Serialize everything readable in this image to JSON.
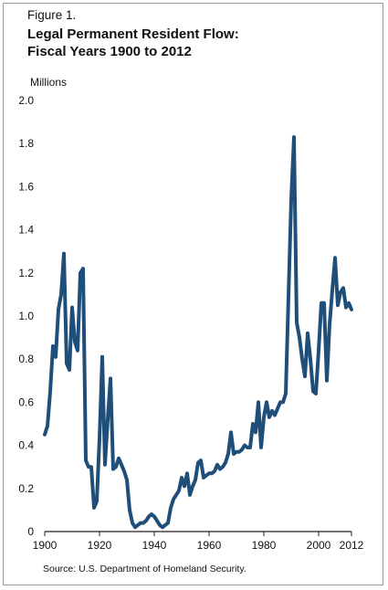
{
  "figure_label": "Figure 1.",
  "title_line1": "Legal Permanent Resident Flow:",
  "title_line2": "Fiscal Years 1900 to 2012",
  "source": "Source: U.S. Department of Homeland Security.",
  "colors": {
    "line": "#1f4e79",
    "axis": "#222222"
  },
  "chart_data": {
    "type": "line",
    "title": "Legal Permanent Resident Flow: Fiscal Years 1900 to 2012",
    "ylabel": "Millions",
    "xlabel": "",
    "xlim": [
      1900,
      2012
    ],
    "ylim": [
      0,
      2.0
    ],
    "x_ticks": [
      "1900",
      "1920",
      "1940",
      "1960",
      "1980",
      "2000",
      "2012"
    ],
    "x_tick_values": [
      1900,
      1920,
      1940,
      1960,
      1980,
      2000,
      2012
    ],
    "y_ticks": [
      "0",
      "0.2",
      "0.4",
      "0.6",
      "0.8",
      "1.0",
      "1.2",
      "1.4",
      "1.6",
      "1.8",
      "2.0"
    ],
    "y_tick_values": [
      0,
      0.2,
      0.4,
      0.6,
      0.8,
      1.0,
      1.2,
      1.4,
      1.6,
      1.8,
      2.0
    ],
    "grid": false,
    "series": [
      {
        "x": [
          1900,
          1901,
          1902,
          1903,
          1904,
          1905,
          1906,
          1907,
          1908,
          1909,
          1910,
          1911,
          1912,
          1913,
          1914,
          1915,
          1916,
          1917,
          1918,
          1919,
          1920,
          1921,
          1922,
          1923,
          1924,
          1925,
          1926,
          1927,
          1928,
          1929,
          1930,
          1931,
          1932,
          1933,
          1934,
          1935,
          1936,
          1937,
          1938,
          1939,
          1940,
          1941,
          1942,
          1943,
          1944,
          1945,
          1946,
          1947,
          1948,
          1949,
          1950,
          1951,
          1952,
          1953,
          1954,
          1955,
          1956,
          1957,
          1958,
          1959,
          1960,
          1961,
          1962,
          1963,
          1964,
          1965,
          1966,
          1967,
          1968,
          1969,
          1970,
          1971,
          1972,
          1973,
          1974,
          1975,
          1976,
          1977,
          1978,
          1979,
          1980,
          1981,
          1982,
          1983,
          1984,
          1985,
          1986,
          1987,
          1988,
          1989,
          1990,
          1991,
          1992,
          1993,
          1994,
          1995,
          1996,
          1997,
          1998,
          1999,
          2000,
          2001,
          2002,
          2003,
          2004,
          2005,
          2006,
          2007,
          2008,
          2009,
          2010,
          2011,
          2012
        ],
        "values": [
          0.45,
          0.49,
          0.65,
          0.86,
          0.81,
          1.03,
          1.1,
          1.29,
          0.78,
          0.75,
          1.04,
          0.88,
          0.84,
          1.2,
          1.22,
          0.33,
          0.3,
          0.3,
          0.11,
          0.14,
          0.43,
          0.81,
          0.31,
          0.52,
          0.71,
          0.29,
          0.3,
          0.34,
          0.31,
          0.28,
          0.24,
          0.1,
          0.04,
          0.02,
          0.03,
          0.04,
          0.04,
          0.05,
          0.07,
          0.08,
          0.07,
          0.05,
          0.03,
          0.02,
          0.03,
          0.04,
          0.11,
          0.15,
          0.17,
          0.19,
          0.25,
          0.21,
          0.27,
          0.17,
          0.21,
          0.24,
          0.32,
          0.33,
          0.25,
          0.26,
          0.27,
          0.27,
          0.28,
          0.31,
          0.29,
          0.3,
          0.32,
          0.36,
          0.46,
          0.36,
          0.37,
          0.37,
          0.38,
          0.4,
          0.39,
          0.39,
          0.5,
          0.46,
          0.6,
          0.39,
          0.53,
          0.6,
          0.53,
          0.56,
          0.54,
          0.57,
          0.6,
          0.6,
          0.64,
          1.09,
          1.54,
          1.83,
          0.97,
          0.9,
          0.8,
          0.72,
          0.92,
          0.8,
          0.65,
          0.64,
          0.84,
          1.06,
          1.06,
          0.7,
          0.96,
          1.12,
          1.27,
          1.05,
          1.11,
          1.13,
          1.04,
          1.06,
          1.03
        ]
      }
    ]
  }
}
